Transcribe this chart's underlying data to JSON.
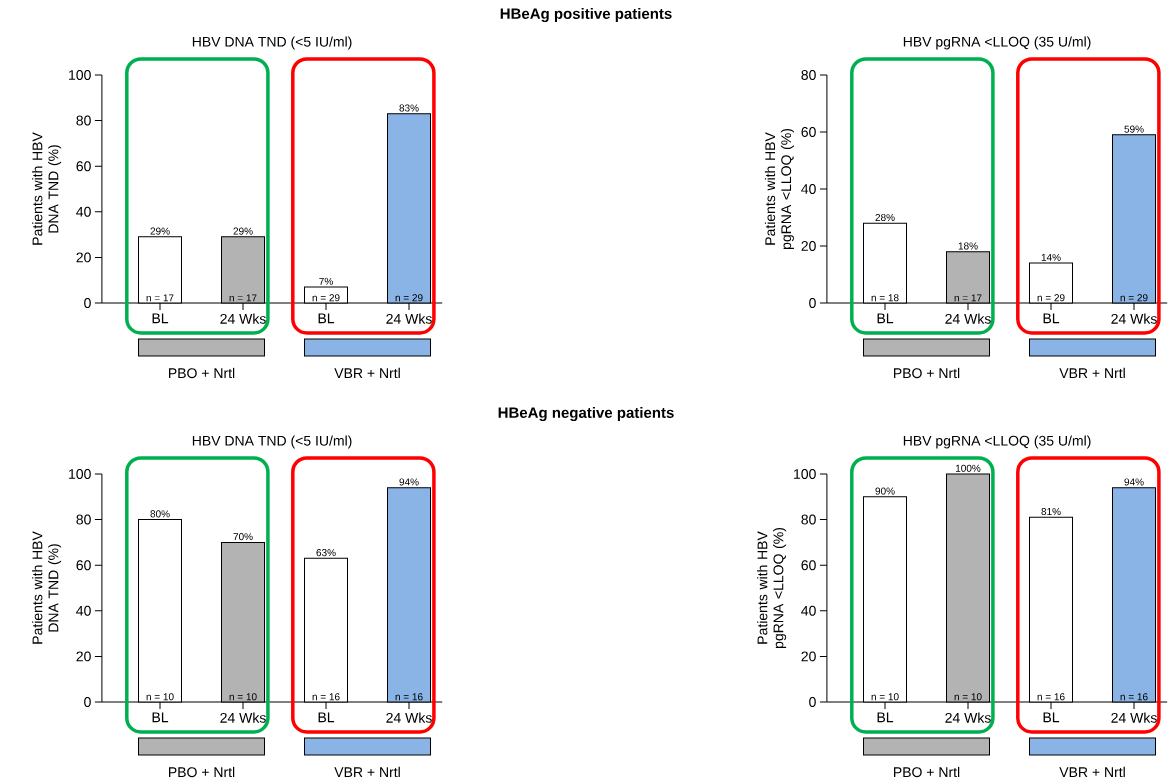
{
  "chart_data": [
    {
      "type": "bar",
      "title": "HBV DNA TND (<5 IU/ml)",
      "ylabel": "Patients with HBV DNA TND (%)",
      "categories": [
        "BL",
        "24 Wks",
        "BL",
        "24 Wks"
      ],
      "values": [
        29,
        29,
        7,
        83
      ],
      "colors": [
        "#ffffff",
        "#b3b3b3",
        "#ffffff",
        "#8ab4e6"
      ],
      "value_labels": [
        "29%",
        "29%",
        "7%",
        "83%"
      ],
      "annotations": [
        "n = 17",
        "n = 17",
        "n = 29",
        "n = 29",
        "PBO + Nrtl",
        "VBR + Nrtl",
        "HBeAg positive patients"
      ],
      "ylim": [
        0,
        100
      ],
      "yticks": [
        0,
        20,
        40,
        60,
        80,
        100
      ]
    },
    {
      "type": "bar",
      "title": "HBV pgRNA <LLOQ (35 U/ml)",
      "ylabel": "Patients with HBV pgRNA <LLOQ (%)",
      "categories": [
        "BL",
        "24 Wks",
        "BL",
        "24 Wks"
      ],
      "values": [
        28,
        18,
        14,
        59
      ],
      "colors": [
        "#ffffff",
        "#b3b3b3",
        "#ffffff",
        "#8ab4e6"
      ],
      "value_labels": [
        "28%",
        "18%",
        "14%",
        "59%"
      ],
      "annotations": [
        "n = 18",
        "n = 17",
        "n = 29",
        "n = 29",
        "PBO + Nrtl",
        "VBR + Nrtl"
      ],
      "ylim": [
        0,
        80
      ],
      "yticks": [
        0,
        20,
        40,
        60,
        80
      ]
    },
    {
      "type": "bar",
      "title": "HBV DNA TND (<5 IU/ml)",
      "ylabel": "Patients with HBV DNA TND (%)",
      "categories": [
        "BL",
        "24 Wks",
        "BL",
        "24 Wks"
      ],
      "values": [
        80,
        70,
        63,
        94
      ],
      "colors": [
        "#ffffff",
        "#b3b3b3",
        "#ffffff",
        "#8ab4e6"
      ],
      "value_labels": [
        "80%",
        "70%",
        "63%",
        "94%"
      ],
      "annotations": [
        "n = 10",
        "n = 10",
        "n = 16",
        "n = 16",
        "PBO + Nrtl",
        "VBR + Nrtl",
        "HBeAg negative patients"
      ],
      "ylim": [
        0,
        100
      ],
      "yticks": [
        0,
        20,
        40,
        60,
        80,
        100
      ]
    },
    {
      "type": "bar",
      "title": "HBV pgRNA <LLOQ (35 U/ml)",
      "ylabel": "Patients with HBV pgRNA <LLOQ (%)",
      "categories": [
        "BL",
        "24 Wks",
        "BL",
        "24 Wks"
      ],
      "values": [
        90,
        100,
        81,
        94
      ],
      "colors": [
        "#ffffff",
        "#b3b3b3",
        "#ffffff",
        "#8ab4e6"
      ],
      "value_labels": [
        "90%",
        "100%",
        "81%",
        "94%"
      ],
      "annotations": [
        "n = 10",
        "n = 10",
        "n = 16",
        "n = 16",
        "PBO + Nrtl",
        "VBR + Nrtl"
      ],
      "ylim": [
        0,
        100
      ],
      "yticks": [
        0,
        20,
        40,
        60,
        80,
        100
      ]
    }
  ]
}
